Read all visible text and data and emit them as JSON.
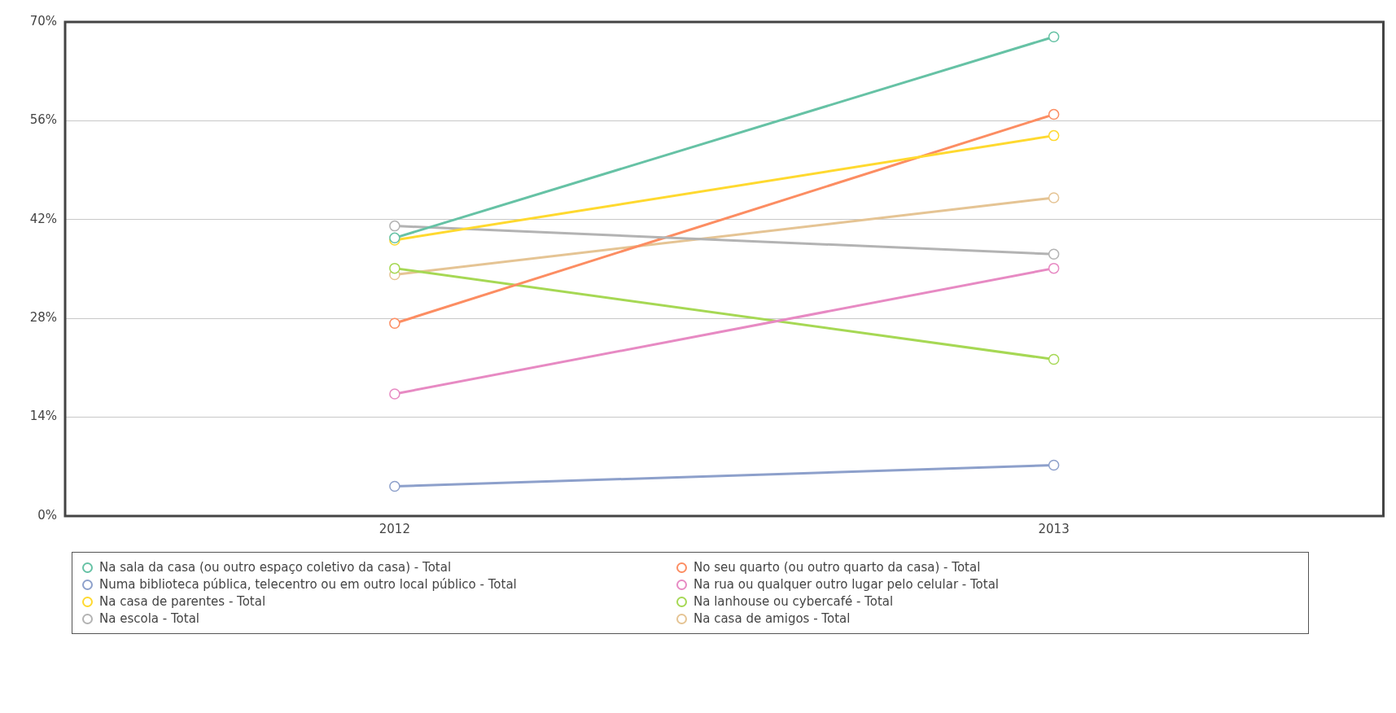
{
  "chart_data": {
    "type": "line",
    "categories": [
      "2012",
      "2013"
    ],
    "series": [
      {
        "name": "Na sala da casa (ou outro espaço coletivo da casa) - Total",
        "color": "#66c2a5",
        "values": [
          39.4,
          67.9
        ]
      },
      {
        "name": "Numa biblioteca pública, telecentro ou em outro local público - Total",
        "color": "#8da0cb",
        "values": [
          4.2,
          7.2
        ]
      },
      {
        "name": "Na casa de parentes - Total",
        "color": "#ffd92f",
        "values": [
          39.1,
          53.9
        ]
      },
      {
        "name": "Na escola - Total",
        "color": "#b3b3b3",
        "values": [
          41.1,
          37.1
        ]
      },
      {
        "name": "No seu quarto (ou outro quarto da casa) - Total",
        "color": "#fc8d62",
        "values": [
          27.3,
          56.9
        ]
      },
      {
        "name": "Na rua ou qualquer outro lugar pelo celular - Total",
        "color": "#e78ac3",
        "values": [
          17.3,
          35.1
        ]
      },
      {
        "name": "Na lanhouse ou cybercafé - Total",
        "color": "#a6d854",
        "values": [
          35.1,
          22.2
        ]
      },
      {
        "name": "Na casa de amigos - Total",
        "color": "#e5c494",
        "values": [
          34.2,
          45.1
        ]
      }
    ],
    "ylim": [
      0,
      70
    ],
    "yticks": [
      {
        "value": 0,
        "label": "0%"
      },
      {
        "value": 14,
        "label": "14%"
      },
      {
        "value": 28,
        "label": "28%"
      },
      {
        "value": 42,
        "label": "42%"
      },
      {
        "value": 56,
        "label": "56%"
      },
      {
        "value": 70,
        "label": "70%"
      }
    ],
    "grid": "y",
    "legend": "bottom",
    "marker": "circle",
    "line_style": "solid"
  }
}
